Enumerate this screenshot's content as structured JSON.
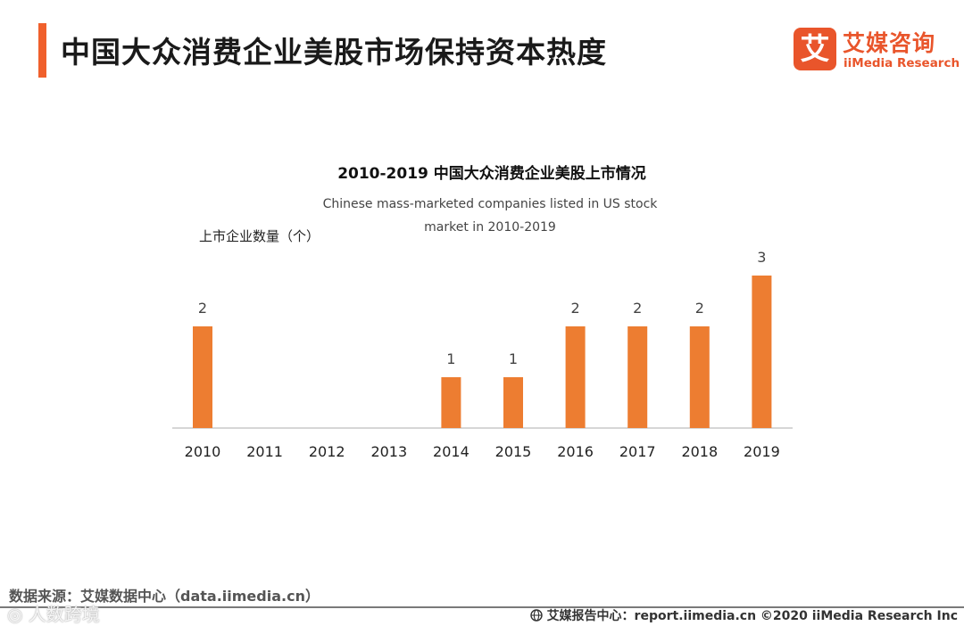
{
  "page": {
    "title": "中国大众消费企业美股市场保持资本热度"
  },
  "logo": {
    "badge_char": "艾",
    "cn": "艾媒咨询",
    "en": "iiMedia Research"
  },
  "chart_data": {
    "type": "bar",
    "title": "2010-2019 中国大众消费企业美股上市情况",
    "subtitle_line1": "Chinese mass-marketed companies listed in US stock",
    "subtitle_line2": "market  in 2010-2019",
    "ylabel": "上市企业数量（个）",
    "xlabel": "",
    "categories": [
      "2010",
      "2011",
      "2012",
      "2013",
      "2014",
      "2015",
      "2016",
      "2017",
      "2018",
      "2019"
    ],
    "values": [
      2,
      0,
      0,
      0,
      1,
      1,
      2,
      2,
      2,
      3
    ],
    "data_labels": [
      "2",
      "",
      "",
      "",
      "1",
      "1",
      "2",
      "2",
      "2",
      "3"
    ],
    "ylim": [
      0,
      3
    ],
    "grid": false,
    "bar_color": "#ed7d31"
  },
  "footer": {
    "source": "数据来源：艾媒数据中心（data.iimedia.cn）",
    "watermark": "◎ 人数跨境",
    "right": "艾媒报告中心：report.iimedia.cn  ©2020  iiMedia Research  Inc"
  }
}
